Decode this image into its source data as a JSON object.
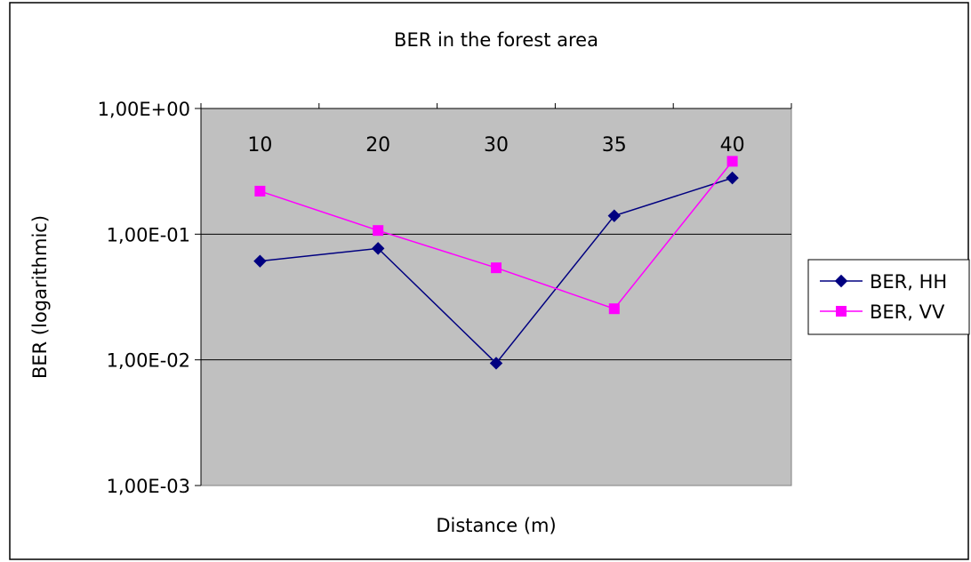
{
  "chart_data": {
    "type": "line",
    "title": "BER in the forest area",
    "xlabel": "Distance (m)",
    "ylabel": "BER (logarithmic)",
    "y_scale": "log",
    "ylim": [
      0.001,
      1
    ],
    "y_ticks": [
      {
        "value": 1,
        "label": "1,00E+00"
      },
      {
        "value": 0.1,
        "label": "1,00E-01"
      },
      {
        "value": 0.01,
        "label": "1,00E-02"
      },
      {
        "value": 0.001,
        "label": "1,00E-03"
      }
    ],
    "categories": [
      "10",
      "20",
      "30",
      "35",
      "40"
    ],
    "x_tick_position": "top-inside",
    "grid": "horizontal",
    "legend": "right",
    "plot_background": "#c0c0c0",
    "series": [
      {
        "name": "BER, HH",
        "color": "#000080",
        "marker": "diamond",
        "values": [
          0.061,
          0.077,
          0.0094,
          0.14,
          0.28
        ]
      },
      {
        "name": "BER, VV",
        "color": "#ff00ff",
        "marker": "square",
        "values": [
          0.22,
          0.107,
          0.054,
          0.0255,
          0.38
        ]
      }
    ]
  }
}
